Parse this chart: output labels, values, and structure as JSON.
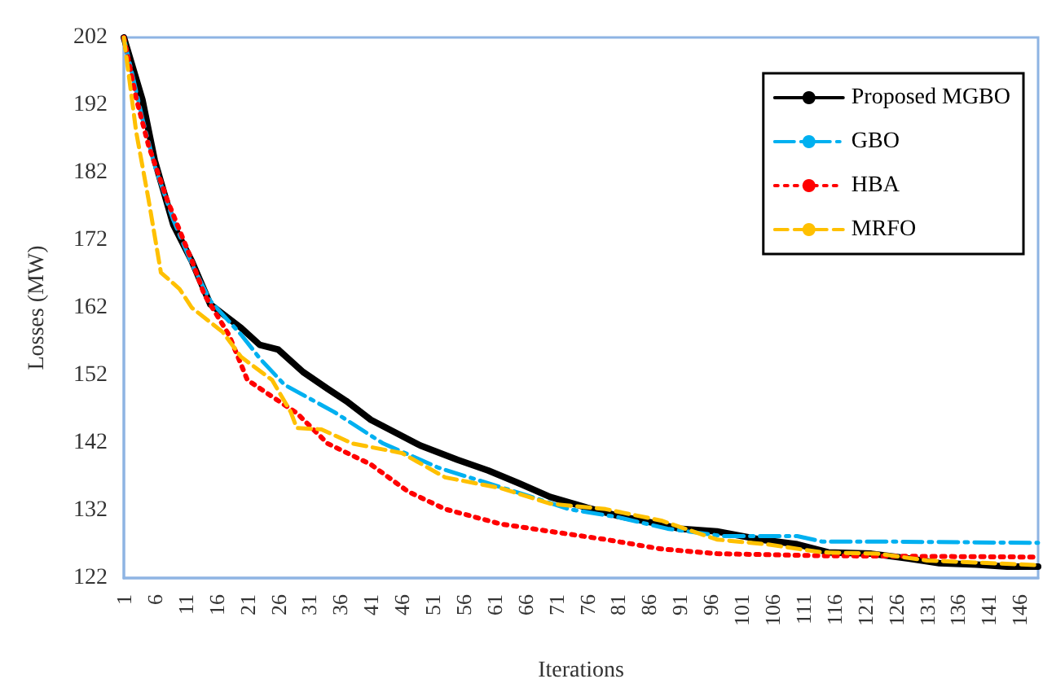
{
  "chart_data": {
    "type": "line",
    "xlabel": "Iterations",
    "ylabel": "Losses (MW)",
    "xlim": [
      1,
      149
    ],
    "xticks": [
      1,
      6,
      11,
      16,
      21,
      26,
      31,
      36,
      41,
      46,
      51,
      56,
      61,
      66,
      71,
      76,
      81,
      86,
      91,
      96,
      101,
      106,
      111,
      116,
      121,
      126,
      131,
      136,
      141,
      146
    ],
    "ylim": [
      122,
      202
    ],
    "yticks": [
      122,
      132,
      142,
      152,
      162,
      172,
      182,
      192,
      202
    ],
    "grid": false,
    "legend": "top right",
    "marker": "none",
    "series": [
      {
        "name": "Proposed MGBO",
        "color": "#000000",
        "line_style": "solid",
        "x": [
          1,
          4,
          6,
          9,
          12,
          15,
          20,
          23,
          26,
          30,
          34,
          37,
          41,
          45,
          49,
          55,
          60,
          65,
          70,
          76,
          81,
          86,
          91,
          97,
          104,
          110,
          115,
          122,
          128,
          133,
          139,
          144,
          149
        ],
        "values": [
          202,
          192.8,
          183.8,
          174.3,
          168.9,
          162.5,
          159,
          156.5,
          155.8,
          152.5,
          150,
          148.2,
          145.4,
          143.5,
          141.6,
          139.5,
          137.9,
          136,
          134,
          132.4,
          131.2,
          130.3,
          129.3,
          128.9,
          127.7,
          127,
          125.8,
          125.6,
          124.9,
          124.2,
          124,
          123.7,
          123.7
        ]
      },
      {
        "name": "GBO",
        "color": "#00b0f0",
        "line_style": "dashdot",
        "x": [
          1,
          4,
          6,
          9,
          12,
          15,
          20,
          23,
          27,
          35,
          43,
          52,
          66,
          73,
          81,
          89,
          98,
          110,
          114,
          123,
          149
        ],
        "values": [
          202,
          190,
          183,
          175,
          168.5,
          163,
          158,
          154.5,
          150.6,
          146.6,
          141.9,
          138.3,
          134.3,
          132.2,
          131,
          129.3,
          128.2,
          128.2,
          127.4,
          127.4,
          127.2
        ]
      },
      {
        "name": "HBA",
        "color": "#ff0000",
        "line_style": "dotted",
        "x": [
          1,
          3,
          5,
          8,
          12,
          14,
          18,
          21,
          29,
          34,
          41,
          47,
          53,
          62,
          70,
          79,
          88,
          97,
          114,
          149
        ],
        "values": [
          202,
          193,
          186,
          178,
          169,
          164,
          158,
          151.3,
          146.4,
          141.9,
          138.8,
          134.8,
          132.2,
          130,
          128.9,
          127.7,
          126.3,
          125.6,
          125.3,
          125.1
        ]
      },
      {
        "name": "MRFO",
        "color": "#ffc000",
        "line_style": "dashed",
        "x": [
          1,
          3,
          5,
          7,
          10,
          12,
          17,
          20,
          25,
          28,
          29,
          33,
          38,
          46,
          53,
          62,
          70,
          79,
          88,
          97,
          105,
          114,
          123,
          131,
          149
        ],
        "values": [
          202,
          188,
          178,
          167.2,
          164.8,
          162,
          158.4,
          154.7,
          151.3,
          146.6,
          144.2,
          144,
          141.9,
          140.5,
          136.9,
          135.3,
          133,
          132.2,
          130.5,
          127.7,
          127,
          125.8,
          125.6,
          124.6,
          123.9
        ]
      }
    ]
  }
}
